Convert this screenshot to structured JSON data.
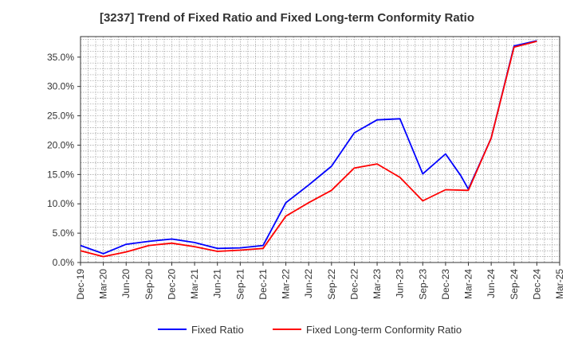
{
  "chart_data": {
    "type": "line",
    "title": "[3237]  Trend of Fixed Ratio and Fixed Long-term Conformity Ratio",
    "xlabel": "",
    "ylabel": "",
    "x": [
      "Dec-19",
      "Mar-20",
      "Jun-20",
      "Sep-20",
      "Dec-20",
      "Mar-21",
      "Jun-21",
      "Sep-21",
      "Dec-21",
      "Mar-22",
      "Jun-22",
      "Sep-22",
      "Dec-22",
      "Mar-23",
      "Jun-23",
      "Sep-23",
      "Dec-23",
      "Mar-24",
      "Jun-24",
      "Sep-24",
      "Dec-24",
      "Mar-25"
    ],
    "x_tick_labels": [
      "Dec-19",
      "Mar-20",
      "Jun-20",
      "Sep-20",
      "Dec-20",
      "Mar-21",
      "Jun-21",
      "Sep-21",
      "Dec-21",
      "Mar-22",
      "Jun-22",
      "Sep-22",
      "Dec-22",
      "Mar-23",
      "Jun-23",
      "Sep-23",
      "Dec-23",
      "Mar-24",
      "Jun-24",
      "Sep-24",
      "Dec-24",
      "Mar-25"
    ],
    "y_tick_labels": [
      "0.0%",
      "5.0%",
      "10.0%",
      "15.0%",
      "20.0%",
      "25.0%",
      "30.0%",
      "35.0%"
    ],
    "y_ticks": [
      0,
      5,
      10,
      15,
      20,
      25,
      30,
      35
    ],
    "ylim": [
      0,
      38.5
    ],
    "y_unit": "%",
    "grid": true,
    "legend_position": "bottom",
    "series": [
      {
        "name": "Fixed Ratio",
        "color": "#0000ff",
        "points": [
          [
            "Dec-19",
            2.9
          ],
          [
            "Mar-20",
            1.5
          ],
          [
            "Jun-20",
            3.1
          ],
          [
            "Sep-20",
            3.6
          ],
          [
            "Dec-20",
            4.0
          ],
          [
            "Mar-21",
            3.4
          ],
          [
            "Jun-21",
            2.4
          ],
          [
            "Sep-21",
            2.5
          ],
          [
            "Dec-21",
            2.9
          ],
          [
            "Mar-22",
            10.2
          ],
          [
            "Jun-22",
            13.2
          ],
          [
            "Sep-22",
            16.4
          ],
          [
            "Dec-22",
            22.1
          ],
          [
            "Mar-23",
            24.3
          ],
          [
            "Jun-23",
            24.5
          ],
          [
            "Sep-23",
            15.1
          ],
          [
            "Dec-23",
            18.5
          ],
          [
            "Feb-24",
            14.8
          ],
          [
            "Mar-24",
            12.5
          ],
          [
            "Jun-24",
            21.2
          ],
          [
            "Sep-24",
            36.9
          ],
          [
            "Dec-24",
            37.8
          ]
        ]
      },
      {
        "name": "Fixed Long-term Conformity Ratio",
        "color": "#ff0000",
        "points": [
          [
            "Dec-19",
            2.0
          ],
          [
            "Mar-20",
            1.0
          ],
          [
            "Jun-20",
            1.8
          ],
          [
            "Sep-20",
            2.9
          ],
          [
            "Dec-20",
            3.3
          ],
          [
            "Mar-21",
            2.7
          ],
          [
            "Jun-21",
            1.9
          ],
          [
            "Sep-21",
            2.1
          ],
          [
            "Dec-21",
            2.4
          ],
          [
            "Mar-22",
            7.9
          ],
          [
            "Jun-22",
            10.2
          ],
          [
            "Sep-22",
            12.3
          ],
          [
            "Dec-22",
            16.1
          ],
          [
            "Mar-23",
            16.8
          ],
          [
            "Jun-23",
            14.5
          ],
          [
            "Sep-23",
            10.5
          ],
          [
            "Dec-23",
            12.4
          ],
          [
            "Mar-24",
            12.3
          ],
          [
            "Jun-24",
            21.2
          ],
          [
            "Sep-24",
            36.7
          ],
          [
            "Dec-24",
            37.7
          ]
        ]
      }
    ]
  }
}
